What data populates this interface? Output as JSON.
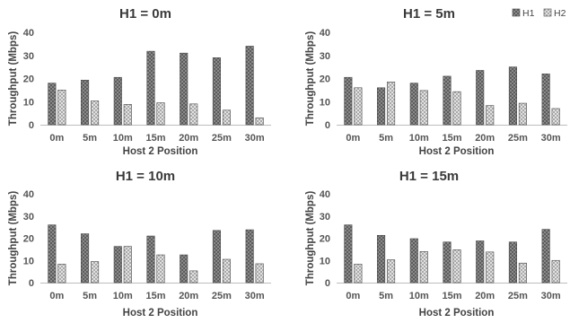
{
  "chart_data": [
    {
      "type": "bar",
      "title": "H1 = 0m",
      "xlabel": "Host 2 Position",
      "ylabel": "Throughput (Mbps)",
      "ylim": [
        0,
        40
      ],
      "yticks": [
        "0",
        "10",
        "20",
        "30",
        "40"
      ],
      "categories": [
        "0m",
        "5m",
        "10m",
        "15m",
        "20m",
        "25m",
        "30m"
      ],
      "series": [
        {
          "name": "H1",
          "values": [
            18,
            19.3,
            20.5,
            31.8,
            31,
            29,
            34
          ],
          "color": "#6d6d6d"
        },
        {
          "name": "H2",
          "values": [
            15,
            10.3,
            8.8,
            9.5,
            9,
            6.3,
            3
          ],
          "color": "#cfcfcf"
        }
      ]
    },
    {
      "type": "bar",
      "title": "H1 = 5m",
      "xlabel": "Host 2 Position",
      "ylabel": "Throughput (Mbps)",
      "ylim": [
        0,
        40
      ],
      "yticks": [
        "0",
        "10",
        "20",
        "30",
        "40"
      ],
      "categories": [
        "0m",
        "5m",
        "10m",
        "15m",
        "20m",
        "25m",
        "30m"
      ],
      "legend": {
        "placement": "top-right",
        "entries": [
          "H1",
          "H2"
        ]
      },
      "series": [
        {
          "name": "H1",
          "values": [
            20.5,
            16,
            18,
            21,
            23.5,
            25,
            22
          ],
          "color": "#6d6d6d"
        },
        {
          "name": "H2",
          "values": [
            16,
            18.5,
            14.8,
            14.3,
            8.3,
            9.3,
            7
          ],
          "color": "#cfcfcf"
        }
      ]
    },
    {
      "type": "bar",
      "title": "H1 = 10m",
      "xlabel": "Host 2 Position",
      "ylabel": "Throughput (Mbps)",
      "ylim": [
        0,
        40
      ],
      "yticks": [
        "0",
        "10",
        "20",
        "30",
        "40"
      ],
      "categories": [
        "0m",
        "5m",
        "10m",
        "15m",
        "20m",
        "25m",
        "30m"
      ],
      "series": [
        {
          "name": "H1",
          "values": [
            26,
            22,
            16.3,
            21,
            12.5,
            23.5,
            23.8
          ],
          "color": "#6d6d6d"
        },
        {
          "name": "H2",
          "values": [
            8.3,
            9.5,
            16.3,
            12.5,
            5.3,
            10.5,
            8.5
          ],
          "color": "#cfcfcf"
        }
      ]
    },
    {
      "type": "bar",
      "title": "H1 = 15m",
      "xlabel": "Host 2 Position",
      "ylabel": "Throughput (Mbps)",
      "ylim": [
        0,
        40
      ],
      "yticks": [
        "0",
        "10",
        "20",
        "30",
        "40"
      ],
      "categories": [
        "0m",
        "5m",
        "10m",
        "15m",
        "20m",
        "25m",
        "30m"
      ],
      "series": [
        {
          "name": "H1",
          "values": [
            26,
            21.3,
            19.8,
            18.3,
            18.8,
            18.3,
            24
          ],
          "color": "#6d6d6d"
        },
        {
          "name": "H2",
          "values": [
            8.3,
            10.3,
            14,
            14.8,
            13.8,
            8.8,
            10
          ],
          "color": "#cfcfcf"
        }
      ]
    }
  ]
}
